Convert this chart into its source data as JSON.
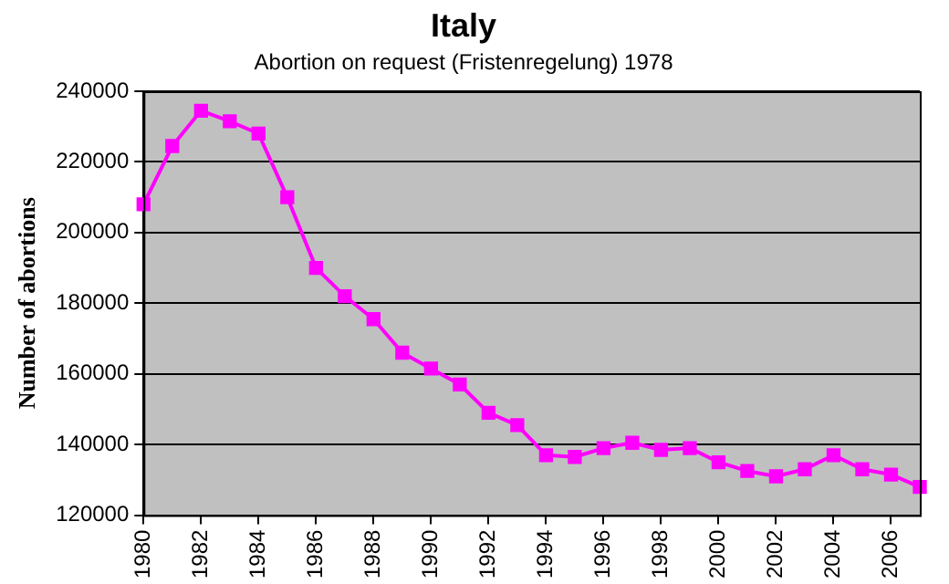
{
  "chart_data": {
    "type": "line",
    "title": "Italy",
    "subtitle": "Abortion on request (Fristenregelung) 1978",
    "ylabel": "Number of abortions",
    "x": [
      1980,
      1981,
      1982,
      1983,
      1984,
      1985,
      1986,
      1987,
      1988,
      1989,
      1990,
      1991,
      1992,
      1993,
      1994,
      1995,
      1996,
      1997,
      1998,
      1999,
      2000,
      2001,
      2002,
      2003,
      2004,
      2005,
      2006,
      2007
    ],
    "series": [
      {
        "color": "#ff00ff",
        "values": [
          208000,
          224500,
          234500,
          231500,
          228000,
          210000,
          190000,
          182000,
          175500,
          166000,
          161500,
          157000,
          149000,
          145500,
          137000,
          136500,
          139000,
          140500,
          138500,
          139000,
          135000,
          132500,
          131000,
          133000,
          137000,
          133000,
          131500,
          128000
        ]
      }
    ],
    "xlim": [
      1980,
      2007
    ],
    "xticks": [
      1980,
      1982,
      1984,
      1986,
      1988,
      1990,
      1992,
      1994,
      1996,
      1998,
      2000,
      2002,
      2004,
      2006
    ],
    "ylim": [
      120000,
      240000
    ],
    "yticks": [
      120000,
      140000,
      160000,
      180000,
      200000,
      220000,
      240000
    ],
    "grid": "y",
    "legend": false,
    "marker": "square",
    "line_style": "solid"
  }
}
